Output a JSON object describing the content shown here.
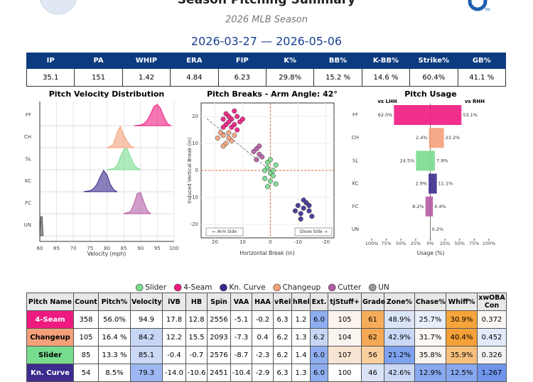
{
  "header": {
    "title": "Season Pitching Summary",
    "subtitle": "2026 MLB Season",
    "date_range": "2026-03-27 — 2026-05-06",
    "logo_mark": "TM",
    "stats": {
      "labels": [
        "IP",
        "PA",
        "WHIP",
        "ERA",
        "FIP",
        "K%",
        "BB%",
        "K-BB%",
        "Strike%",
        "GB%"
      ],
      "values": [
        "35.1",
        "151",
        "1.42",
        "4.84",
        "6.23",
        "29.8%",
        "15.2 %",
        "14.6 %",
        "60.4%",
        "41.1 %"
      ]
    }
  },
  "chart_data": [
    {
      "type": "ridgeline",
      "title": "Pitch Velocity Distribution",
      "xlabel": "Velocity (mph)",
      "categories": [
        "FF",
        "CH",
        "SL",
        "KC",
        "FC",
        "UN"
      ],
      "series": [
        {
          "color": "#ee1a80",
          "x": [
            88,
            90,
            91,
            92,
            93,
            94,
            95,
            96,
            97,
            98,
            99
          ],
          "values": [
            0,
            0.03,
            0.1,
            0.25,
            0.55,
            0.9,
            1,
            0.8,
            0.4,
            0.1,
            0
          ]
        },
        {
          "color": "#f4a07a",
          "x": [
            80,
            81,
            82,
            83,
            84,
            85,
            86,
            87,
            88
          ],
          "values": [
            0,
            0.05,
            0.2,
            0.7,
            1,
            0.6,
            0.3,
            0.1,
            0
          ]
        },
        {
          "color": "#78dc8e",
          "x": [
            80,
            82,
            83,
            84,
            85,
            86,
            87,
            88,
            89,
            90
          ],
          "values": [
            0,
            0.05,
            0.2,
            0.6,
            0.95,
            1,
            0.6,
            0.25,
            0.08,
            0
          ]
        },
        {
          "color": "#3d2b8d",
          "x": [
            73,
            75,
            76,
            77,
            78,
            79,
            80,
            81,
            82,
            83
          ],
          "values": [
            0,
            0.05,
            0.15,
            0.35,
            0.7,
            1,
            0.8,
            0.35,
            0.1,
            0
          ]
        },
        {
          "color": "#b45ba3",
          "x": [
            85,
            87,
            88,
            89,
            90,
            91,
            92,
            93
          ],
          "values": [
            0,
            0.1,
            0.45,
            0.95,
            1,
            0.55,
            0.15,
            0
          ]
        },
        {
          "color": "#555555",
          "x": [
            60,
            60.3,
            60.7,
            61
          ],
          "values": [
            0,
            0.9,
            0.9,
            0
          ]
        }
      ],
      "xlim": [
        60,
        100
      ],
      "ylim": [
        0,
        1
      ],
      "xticks": [
        60,
        65,
        70,
        75,
        80,
        85,
        90,
        95,
        100
      ],
      "grid": true
    },
    {
      "type": "scatter",
      "title": "Pitch Breaks - Arm Angle: 42°",
      "xlabel": "Horizontal Break (in)",
      "ylabel": "Induced Vertical Break (in)",
      "annotations": [
        "← Arm Side",
        "Glove Side →"
      ],
      "series": [
        {
          "name": "4-Seam",
          "color": "#ee1a80",
          "x": [
            12,
            14,
            16,
            13,
            15,
            17,
            11,
            14,
            16,
            13,
            10,
            15,
            12,
            17
          ],
          "y": [
            20,
            19,
            21,
            17,
            18,
            19,
            18,
            16,
            17,
            22,
            19,
            20,
            15,
            16
          ]
        },
        {
          "name": "Changeup",
          "color": "#f4a07a",
          "x": [
            15,
            17,
            14,
            18,
            16,
            13,
            19,
            15,
            17
          ],
          "y": [
            12,
            13,
            11,
            14,
            10,
            13,
            12,
            14,
            9
          ]
        },
        {
          "name": "Slider",
          "color": "#78dc8e",
          "x": [
            0,
            1,
            -1,
            2,
            -2,
            0,
            1,
            -1,
            2,
            0,
            -2,
            1
          ],
          "y": [
            -1,
            1,
            -2,
            0,
            2,
            -4,
            3,
            0,
            -3,
            4,
            -5,
            -6
          ]
        },
        {
          "name": "Kn. Curve",
          "color": "#3d2b8d",
          "x": [
            -12,
            -10,
            -14,
            -11,
            -13,
            -15,
            -9,
            -12,
            -14,
            -11
          ],
          "y": [
            -14,
            -13,
            -15,
            -16,
            -12,
            -17,
            -15,
            -11,
            -13,
            -18
          ]
        },
        {
          "name": "Cutter",
          "color": "#b45ba3",
          "x": [
            4,
            5,
            3,
            6,
            4,
            5
          ],
          "y": [
            6,
            8,
            5,
            7,
            9,
            4
          ]
        }
      ],
      "xlim": [
        25,
        -23
      ],
      "ylim": [
        -25,
        25
      ],
      "xticks": [
        20,
        10,
        0,
        -10,
        -20
      ],
      "yticks": [
        20,
        10,
        0,
        -10,
        -20
      ],
      "grid": true
    },
    {
      "type": "butterfly",
      "title": "Pitch Usage",
      "xlabel": "Usage (%)",
      "categories": [
        "FF",
        "CH",
        "SL",
        "KC",
        "FC",
        "UN"
      ],
      "colors": [
        "#ee1a80",
        "#f4a07a",
        "#78dc8e",
        "#3d2b8d",
        "#b45ba3",
        "#999999"
      ],
      "series": [
        {
          "name": "vs LHH",
          "values": [
            62.0,
            2.4,
            24.5,
            2.9,
            8.2,
            0
          ],
          "value_labels": [
            "62.0%",
            "2.4%",
            "24.5%",
            "2.9%",
            "8.2%",
            null
          ]
        },
        {
          "name": "vs RHH",
          "values": [
            53.1,
            23.2,
            7.9,
            11.1,
            4.4,
            0.2
          ],
          "value_labels": [
            "53.1%",
            "23.2%",
            "7.9%",
            "11.1%",
            "4.4%",
            "0.2%"
          ]
        }
      ],
      "xlim": [
        -100,
        100
      ],
      "xticks": [
        {
          "value": -100,
          "label": "100%"
        },
        {
          "value": -75,
          "label": "75%"
        },
        {
          "value": -50,
          "label": "50%"
        },
        {
          "value": -25,
          "label": "25%"
        },
        {
          "value": 0,
          "label": "0%"
        },
        {
          "value": 25,
          "label": "25%"
        },
        {
          "value": 50,
          "label": "50%"
        },
        {
          "value": 75,
          "label": "75%"
        },
        {
          "value": 100,
          "label": "100%"
        }
      ]
    }
  ],
  "legend": [
    {
      "name": "Slider",
      "color": "#78dc8e"
    },
    {
      "name": "4-Seam",
      "color": "#ee1a80"
    },
    {
      "name": "Kn. Curve",
      "color": "#3d2b8d"
    },
    {
      "name": "Changeup",
      "color": "#f4a07a"
    },
    {
      "name": "Cutter",
      "color": "#b45ba3"
    },
    {
      "name": "UN",
      "color": "#999999"
    }
  ],
  "pitch_table": {
    "columns": [
      "Pitch Name",
      "Count",
      "Pitch%",
      "Velocity",
      "iVB",
      "HB",
      "Spin",
      "VAA",
      "HAA",
      "vRel",
      "hRel",
      "Ext.",
      "tjStuff+",
      "Grade",
      "Zone%",
      "Chase%",
      "Whiff%",
      "xwOBA Con"
    ],
    "rows": [
      {
        "text_color": "#ffffff",
        "cells": [
          "4-Seam",
          "358",
          "56.0%",
          "94.9",
          "17.8",
          "12.8",
          "2556",
          "-5.1",
          "-0.2",
          "6.3",
          "1.2",
          "6.0",
          "105",
          "61",
          "48.9%",
          "25.7%",
          "30.9%",
          "0.372"
        ],
        "fills": [
          "#ee1a80",
          "#fff",
          "#fff",
          "#ffffff",
          "#fff",
          "#fff",
          "#fff",
          "#fff",
          "#fff",
          "#fff",
          "#fff",
          "#8eaef0",
          "#fbf3ee",
          "#f6ad5a",
          "#dbe5f8",
          "#e8eefb",
          "#f6a53a",
          "#fbf7f3"
        ]
      },
      {
        "text_color": "#000000",
        "cells": [
          "Changeup",
          "105",
          "16.4 %",
          "84.2",
          "12.2",
          "15.5",
          "2093",
          "-7.3",
          "0.4",
          "6.2",
          "1.3",
          "6.2",
          "104",
          "62",
          "42.9%",
          "31.7%",
          "40.4%",
          "0.452"
        ],
        "fills": [
          "#f4a07a",
          "#fff",
          "#fff",
          "#c8d6f6",
          "#fff",
          "#fff",
          "#fff",
          "#fff",
          "#fff",
          "#fff",
          "#fff",
          "#c8d6f6",
          "#fbf5f0",
          "#f6a955",
          "#cad8f6",
          "#fbf8f5",
          "#f5a038",
          "#e2eafa"
        ]
      },
      {
        "text_color": "#000000",
        "cells": [
          "Slider",
          "85",
          "13.3 %",
          "85.1",
          "-0.4",
          "-0.7",
          "2576",
          "-8.7",
          "-2.3",
          "6.2",
          "1.4",
          "6.0",
          "107",
          "56",
          "21.2%",
          "35.8%",
          "35.9%",
          "0.326"
        ],
        "fills": [
          "#78dc8e",
          "#fff",
          "#fff",
          "#cbd8f6",
          "#fff",
          "#fff",
          "#fff",
          "#fff",
          "#fff",
          "#fff",
          "#fff",
          "#8eaef0",
          "#f8e4d2",
          "#f9cf9e",
          "#7fa2ee",
          "#fbf5ef",
          "#f8c07e",
          "#f3f3f3"
        ]
      },
      {
        "text_color": "#ffffff",
        "cells": [
          "Kn. Curve",
          "54",
          "8.5%",
          "79.3",
          "-14.0",
          "-10.6",
          "2451",
          "-10.4",
          "-2.9",
          "6.3",
          "1.3",
          "6.0",
          "100",
          "46",
          "42.6%",
          "12.9%",
          "12.5%",
          "1.267"
        ],
        "fills": [
          "#3d2b8d",
          "#fff",
          "#fff",
          "#9db8f2",
          "#fff",
          "#fff",
          "#fff",
          "#fff",
          "#fff",
          "#fff",
          "#fff",
          "#8eaef0",
          "#ffffff",
          "#dbe4f7",
          "#cad8f6",
          "#88a9ef",
          "#87a8ef",
          "#6f96ec"
        ]
      }
    ]
  }
}
